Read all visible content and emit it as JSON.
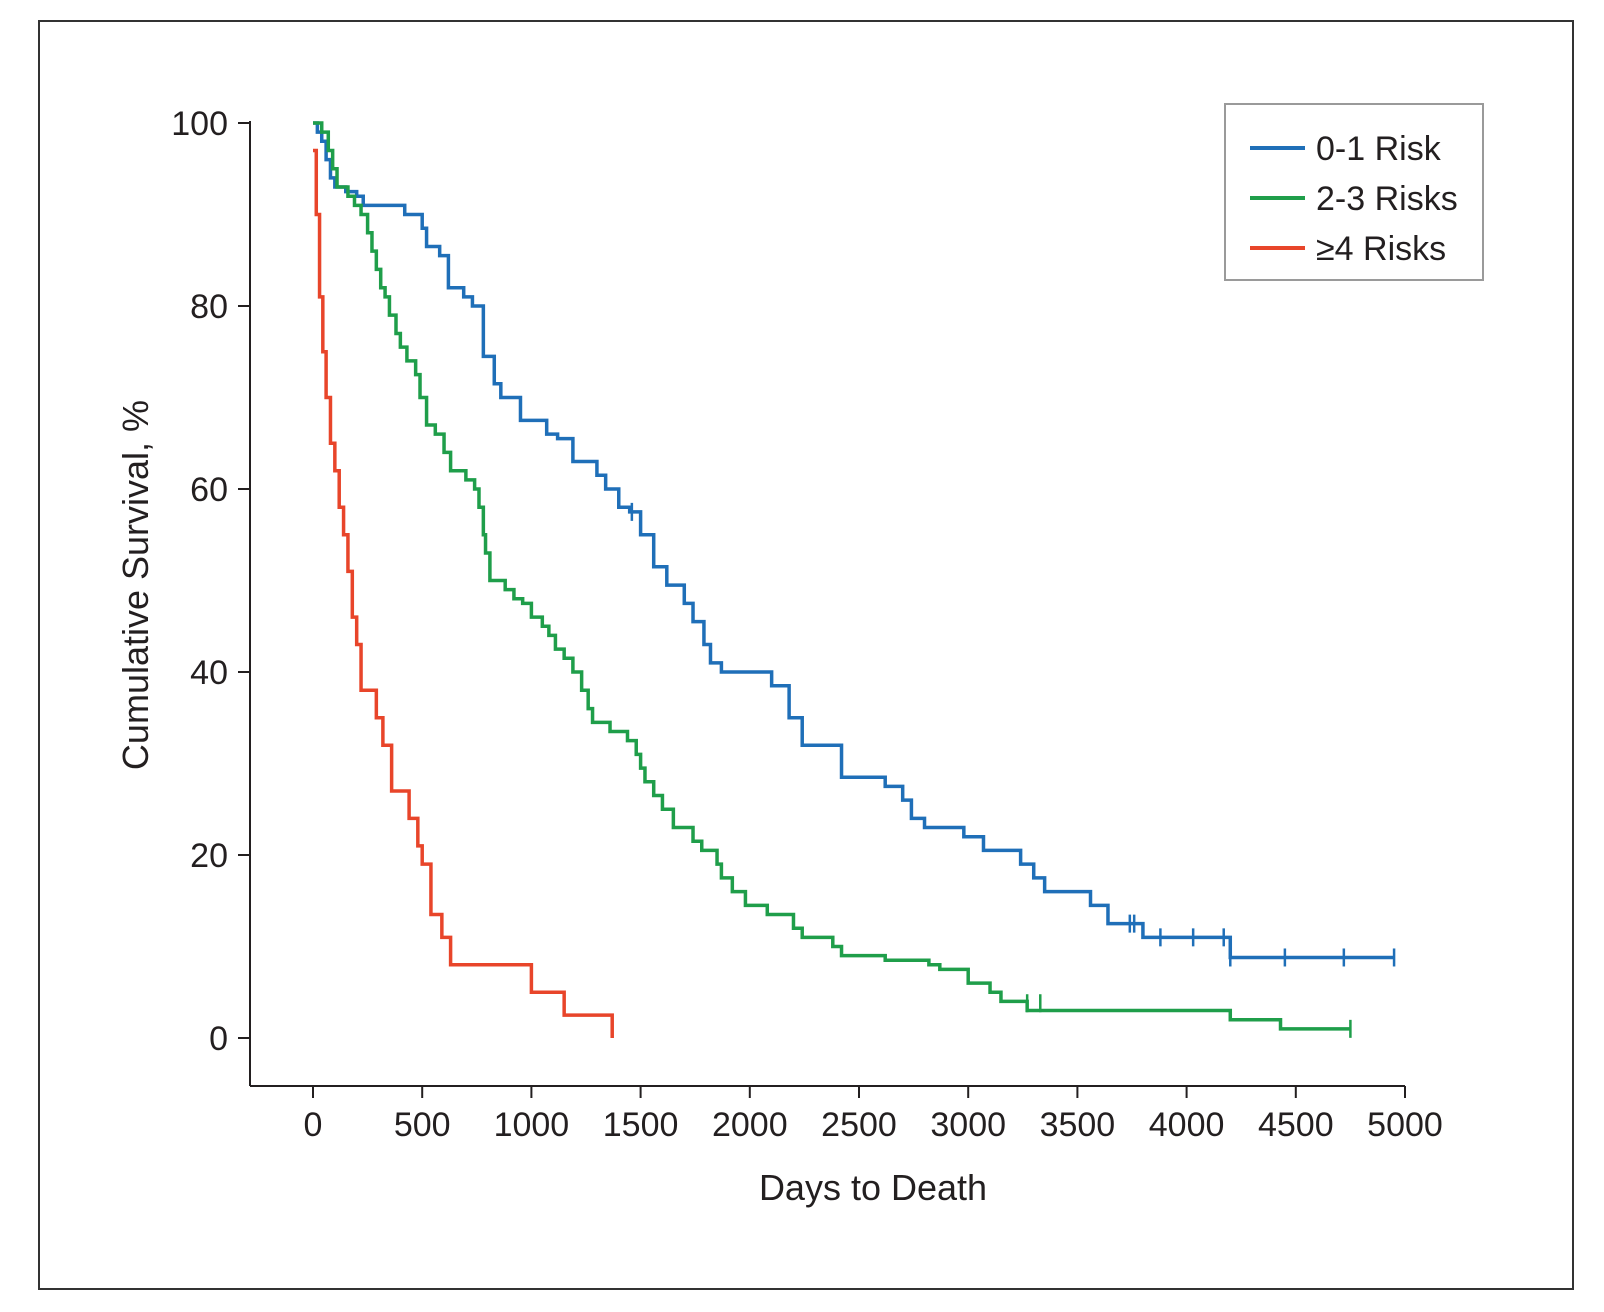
{
  "chart_data": {
    "type": "line",
    "title": "",
    "xlabel": "Days to Death",
    "ylabel": "Cumulative Survival, %",
    "xlim": [
      -280,
      5000
    ],
    "ylim": [
      -5,
      100
    ],
    "x_ticks": [
      0,
      500,
      1000,
      1500,
      2000,
      2500,
      3000,
      3500,
      4000,
      4500,
      5000
    ],
    "y_ticks": [
      0,
      20,
      40,
      60,
      80,
      100
    ],
    "grid": false,
    "legend_position": "top-right",
    "step": true,
    "series": [
      {
        "name": "0-1 Risk",
        "color": "#1f6fb8",
        "points": [
          [
            0,
            100
          ],
          [
            20,
            99
          ],
          [
            40,
            98
          ],
          [
            60,
            96
          ],
          [
            80,
            94
          ],
          [
            100,
            93
          ],
          [
            150,
            92.5
          ],
          [
            200,
            92
          ],
          [
            230,
            91
          ],
          [
            420,
            90
          ],
          [
            500,
            88.5
          ],
          [
            520,
            86.5
          ],
          [
            580,
            85.5
          ],
          [
            620,
            82
          ],
          [
            690,
            81
          ],
          [
            730,
            80
          ],
          [
            780,
            74.5
          ],
          [
            830,
            71.5
          ],
          [
            860,
            70
          ],
          [
            950,
            67.5
          ],
          [
            1070,
            66
          ],
          [
            1120,
            65.5
          ],
          [
            1190,
            63
          ],
          [
            1300,
            61.5
          ],
          [
            1340,
            60
          ],
          [
            1400,
            58
          ],
          [
            1450,
            57.5
          ],
          [
            1500,
            55
          ],
          [
            1560,
            51.5
          ],
          [
            1620,
            49.5
          ],
          [
            1700,
            47.5
          ],
          [
            1740,
            45.5
          ],
          [
            1790,
            43
          ],
          [
            1820,
            41
          ],
          [
            1870,
            40
          ],
          [
            2100,
            38.5
          ],
          [
            2180,
            35
          ],
          [
            2240,
            32
          ],
          [
            2420,
            28.5
          ],
          [
            2620,
            27.5
          ],
          [
            2700,
            26
          ],
          [
            2740,
            24
          ],
          [
            2800,
            23
          ],
          [
            2980,
            22
          ],
          [
            3070,
            20.5
          ],
          [
            3240,
            19
          ],
          [
            3300,
            17.5
          ],
          [
            3350,
            16
          ],
          [
            3560,
            14.5
          ],
          [
            3640,
            12.5
          ],
          [
            3800,
            11
          ],
          [
            4200,
            8.8
          ],
          [
            4950,
            8.8
          ]
        ],
        "censored": [
          [
            1460,
            57.5
          ],
          [
            3740,
            12.5
          ],
          [
            3760,
            12.5
          ],
          [
            3880,
            11
          ],
          [
            4030,
            11
          ],
          [
            4170,
            11
          ],
          [
            4200,
            8.8
          ],
          [
            4450,
            8.8
          ],
          [
            4720,
            8.8
          ],
          [
            4950,
            8.8
          ]
        ]
      },
      {
        "name": "2-3 Risks",
        "color": "#1f9e4a",
        "points": [
          [
            0,
            100
          ],
          [
            40,
            99
          ],
          [
            70,
            97
          ],
          [
            90,
            95
          ],
          [
            110,
            93
          ],
          [
            160,
            92
          ],
          [
            190,
            91
          ],
          [
            220,
            90
          ],
          [
            250,
            88
          ],
          [
            270,
            86
          ],
          [
            290,
            84
          ],
          [
            310,
            82
          ],
          [
            330,
            81
          ],
          [
            350,
            79
          ],
          [
            380,
            77
          ],
          [
            400,
            75.5
          ],
          [
            430,
            74
          ],
          [
            470,
            72.5
          ],
          [
            490,
            70
          ],
          [
            520,
            67
          ],
          [
            560,
            66
          ],
          [
            600,
            64
          ],
          [
            630,
            62
          ],
          [
            700,
            61
          ],
          [
            740,
            60
          ],
          [
            760,
            58
          ],
          [
            780,
            55
          ],
          [
            790,
            53
          ],
          [
            810,
            50
          ],
          [
            880,
            49
          ],
          [
            920,
            48
          ],
          [
            960,
            47.5
          ],
          [
            1000,
            46
          ],
          [
            1050,
            45
          ],
          [
            1080,
            44
          ],
          [
            1110,
            42.5
          ],
          [
            1150,
            41.5
          ],
          [
            1190,
            40
          ],
          [
            1230,
            38
          ],
          [
            1260,
            36
          ],
          [
            1280,
            34.5
          ],
          [
            1360,
            33.5
          ],
          [
            1440,
            32.5
          ],
          [
            1480,
            31
          ],
          [
            1500,
            29.5
          ],
          [
            1520,
            28
          ],
          [
            1560,
            26.5
          ],
          [
            1600,
            25
          ],
          [
            1650,
            23
          ],
          [
            1740,
            21.5
          ],
          [
            1780,
            20.5
          ],
          [
            1850,
            19
          ],
          [
            1870,
            17.5
          ],
          [
            1920,
            16
          ],
          [
            1980,
            14.5
          ],
          [
            2080,
            13.5
          ],
          [
            2200,
            12
          ],
          [
            2240,
            11
          ],
          [
            2380,
            10
          ],
          [
            2420,
            9
          ],
          [
            2620,
            8.5
          ],
          [
            2820,
            8
          ],
          [
            2870,
            7.5
          ],
          [
            3000,
            6
          ],
          [
            3100,
            5
          ],
          [
            3150,
            4
          ],
          [
            3270,
            3
          ],
          [
            4200,
            2
          ],
          [
            4430,
            1
          ],
          [
            4750,
            1
          ]
        ],
        "censored": [
          [
            3270,
            3.8
          ],
          [
            3330,
            3.8
          ],
          [
            4750,
            1
          ]
        ]
      },
      {
        "name": "≥4 Risks",
        "color": "#e8452a",
        "points": [
          [
            0,
            97
          ],
          [
            15,
            90
          ],
          [
            30,
            81
          ],
          [
            45,
            75
          ],
          [
            60,
            70
          ],
          [
            80,
            65
          ],
          [
            100,
            62
          ],
          [
            120,
            58
          ],
          [
            140,
            55
          ],
          [
            160,
            51
          ],
          [
            180,
            46
          ],
          [
            200,
            43
          ],
          [
            220,
            38
          ],
          [
            260,
            38
          ],
          [
            290,
            35
          ],
          [
            320,
            32
          ],
          [
            360,
            27
          ],
          [
            440,
            24
          ],
          [
            480,
            21
          ],
          [
            500,
            19
          ],
          [
            540,
            13.5
          ],
          [
            590,
            11
          ],
          [
            630,
            8
          ],
          [
            1000,
            5
          ],
          [
            1150,
            2.5
          ],
          [
            1370,
            2.5
          ],
          [
            1370,
            0
          ]
        ],
        "censored": []
      }
    ]
  }
}
